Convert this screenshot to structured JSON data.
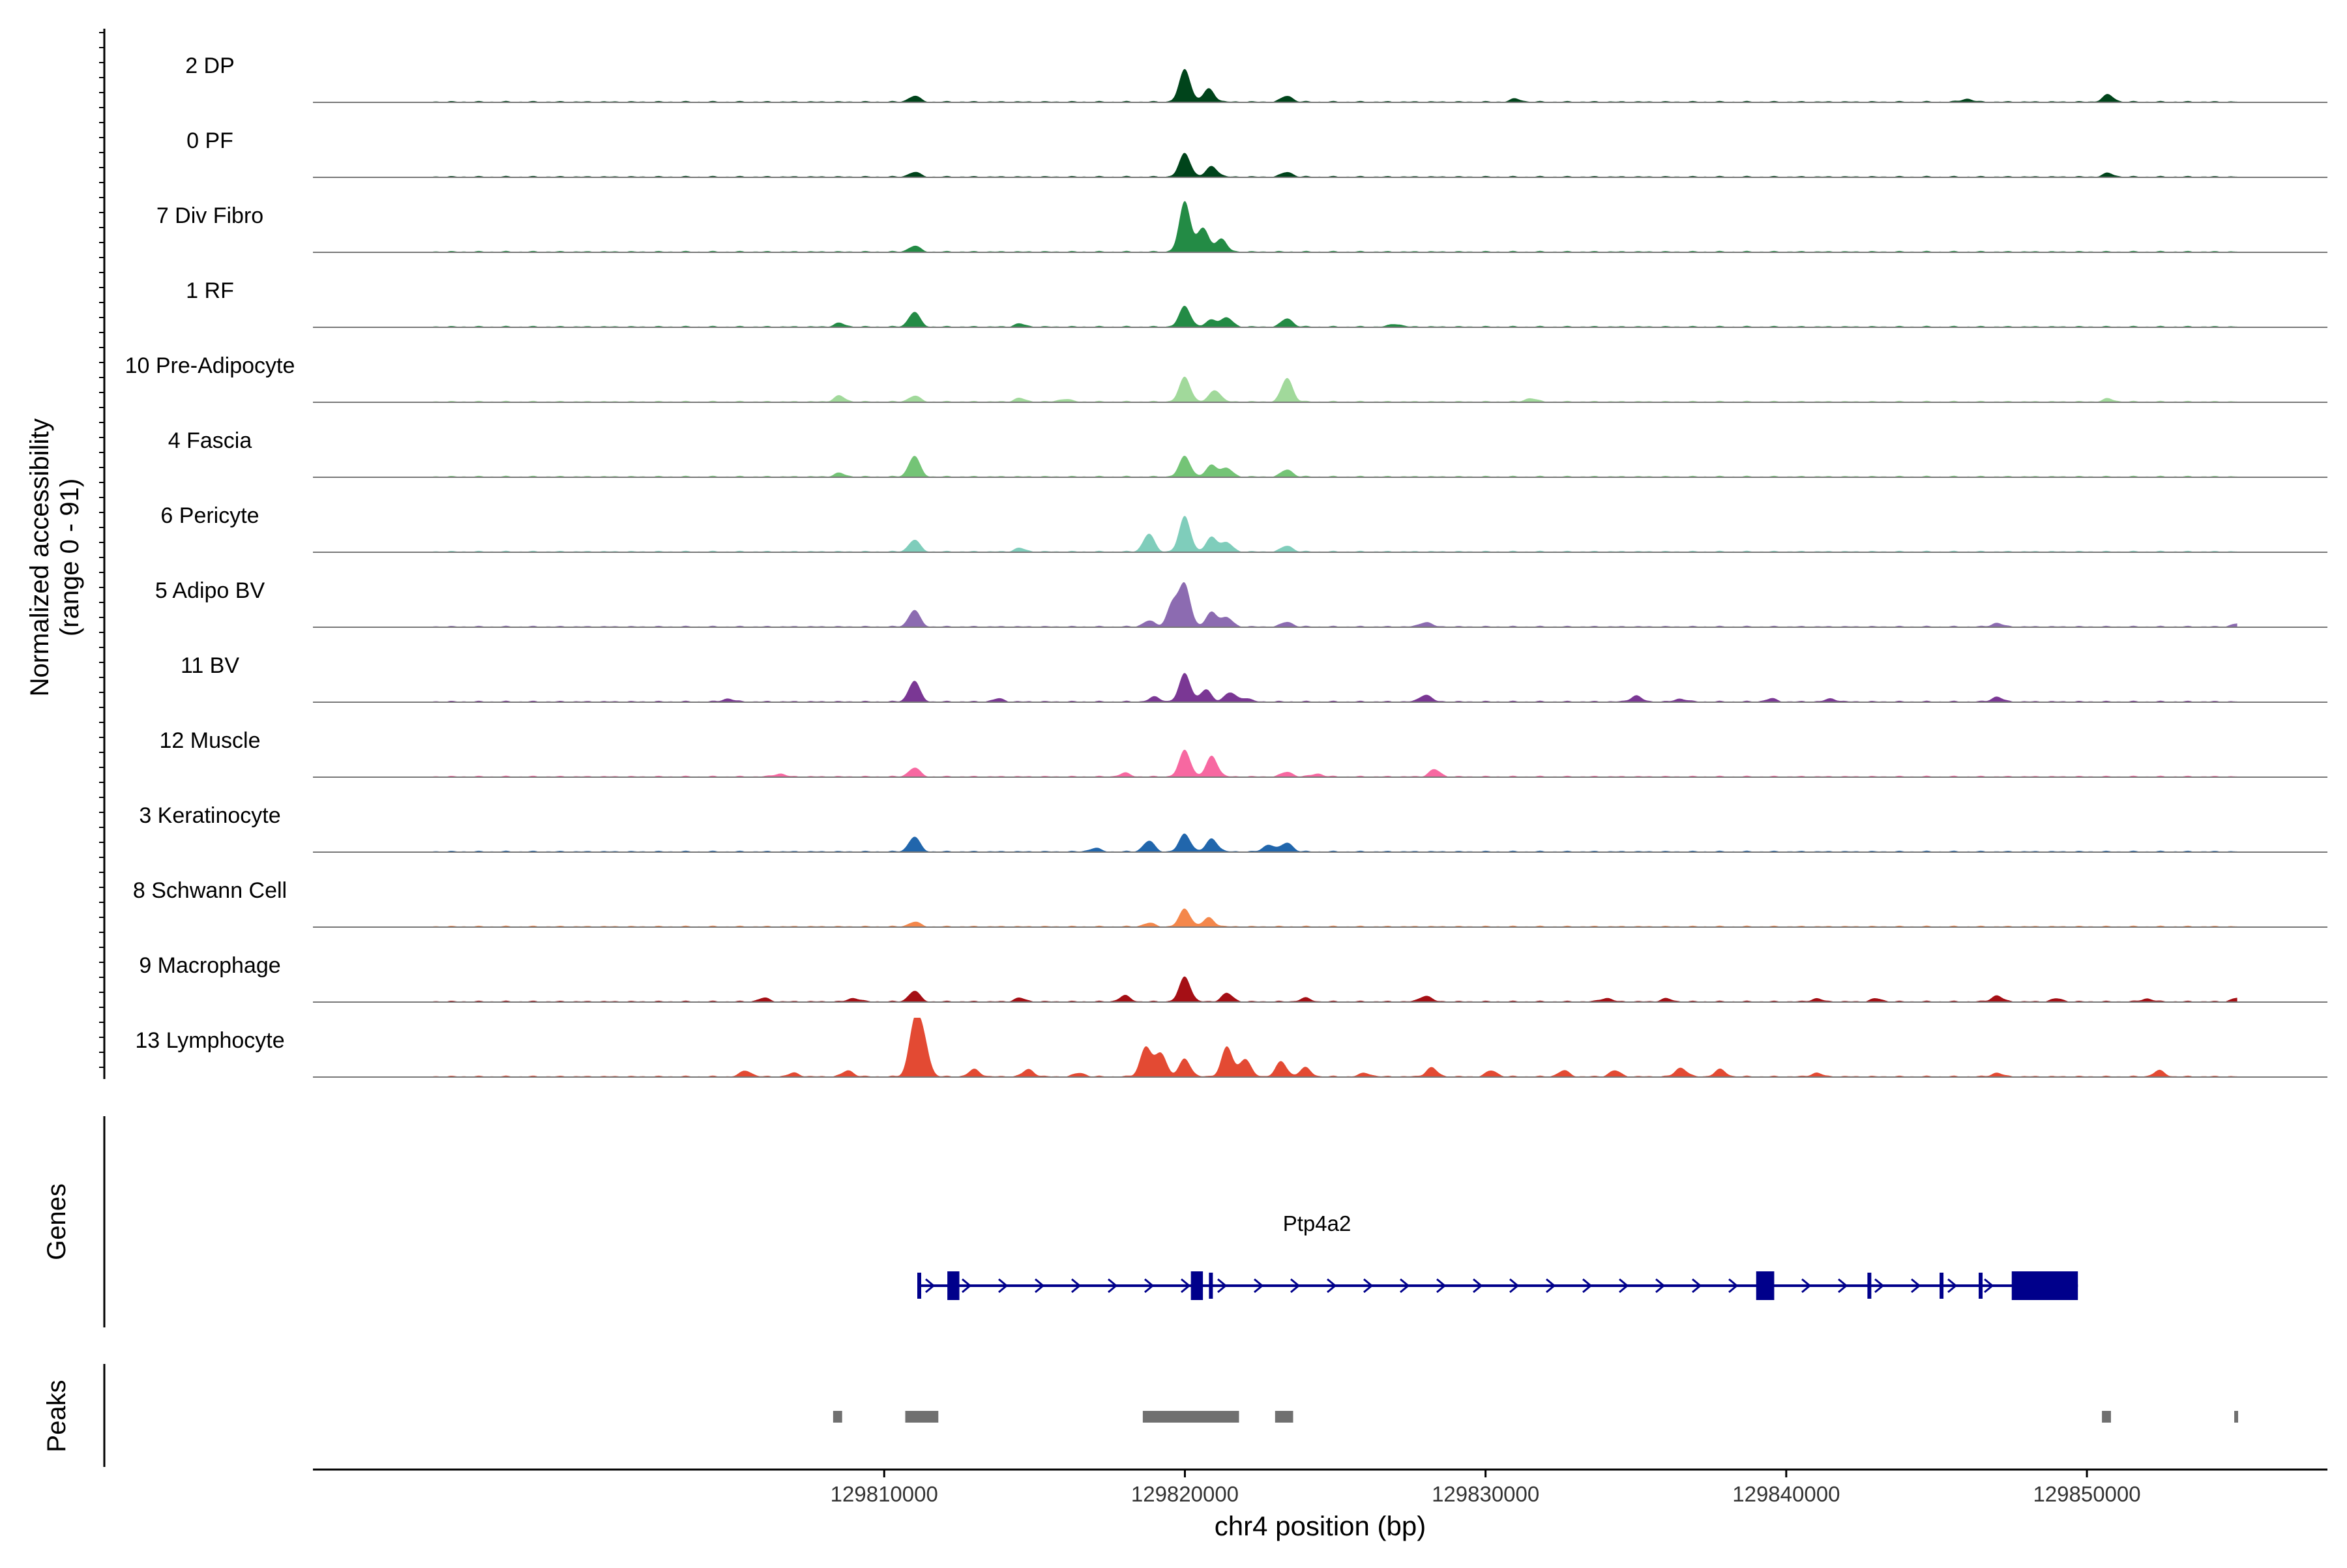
{
  "chart_data": {
    "type": "area",
    "title": "",
    "y_axis_label_line1": "Normalized accessibility",
    "y_axis_label_line2": "(range 0 - 91)",
    "x_axis_label": "chr4 position (bp)",
    "x_range": [
      129791000,
      129858000
    ],
    "x_ticks": [
      129810000,
      129820000,
      129830000,
      129840000,
      129850000
    ],
    "x_tick_labels": [
      "129810000",
      "129820000",
      "129830000",
      "129840000",
      "129850000"
    ],
    "y_range": [
      0,
      91
    ],
    "tracks": [
      {
        "name": "2 DP",
        "color": "#00441b",
        "peaks": [
          [
            129820000,
            0.55
          ],
          [
            129820800,
            0.22
          ],
          [
            129811000,
            0.1
          ],
          [
            129823400,
            0.1
          ],
          [
            129850700,
            0.12
          ],
          [
            129846000,
            0.05
          ],
          [
            129831000,
            0.05
          ]
        ]
      },
      {
        "name": "0 PF",
        "color": "#00441b",
        "peaks": [
          [
            129820000,
            0.4
          ],
          [
            129820900,
            0.18
          ],
          [
            129811000,
            0.08
          ],
          [
            129823400,
            0.08
          ],
          [
            129850700,
            0.06
          ]
        ]
      },
      {
        "name": "7 Div Fibro",
        "color": "#238b45",
        "peaks": [
          [
            129820000,
            0.85
          ],
          [
            129820600,
            0.4
          ],
          [
            129821200,
            0.22
          ],
          [
            129811000,
            0.1
          ]
        ]
      },
      {
        "name": "1 RF",
        "color": "#238b45",
        "peaks": [
          [
            129811000,
            0.25
          ],
          [
            129820000,
            0.35
          ],
          [
            129820900,
            0.12
          ],
          [
            129821400,
            0.15
          ],
          [
            129823400,
            0.14
          ],
          [
            129808500,
            0.06
          ],
          [
            129814500,
            0.05
          ],
          [
            129827000,
            0.05
          ]
        ]
      },
      {
        "name": "10 Pre-Adipocyte",
        "color": "#a1d99b",
        "peaks": [
          [
            129820000,
            0.42
          ],
          [
            129823400,
            0.4
          ],
          [
            129821000,
            0.2
          ],
          [
            129811000,
            0.1
          ],
          [
            129808500,
            0.1
          ],
          [
            129814500,
            0.06
          ],
          [
            129816000,
            0.05
          ],
          [
            129831500,
            0.06
          ],
          [
            129850700,
            0.05
          ]
        ]
      },
      {
        "name": "4 Fascia",
        "color": "#74c476",
        "peaks": [
          [
            129811000,
            0.35
          ],
          [
            129820000,
            0.35
          ],
          [
            129820900,
            0.2
          ],
          [
            129821400,
            0.14
          ],
          [
            129823400,
            0.12
          ],
          [
            129808500,
            0.06
          ]
        ]
      },
      {
        "name": "6 Pericyte",
        "color": "#7fcdbb",
        "peaks": [
          [
            129811000,
            0.2
          ],
          [
            129818800,
            0.3
          ],
          [
            129820000,
            0.6
          ],
          [
            129820900,
            0.25
          ],
          [
            129821400,
            0.15
          ],
          [
            129823400,
            0.1
          ],
          [
            129814500,
            0.06
          ]
        ]
      },
      {
        "name": "5 Adipo BV",
        "color": "#8c6bb1",
        "peaks": [
          [
            129811000,
            0.28
          ],
          [
            129818800,
            0.1
          ],
          [
            129819600,
            0.4
          ],
          [
            129820000,
            0.7
          ],
          [
            129820900,
            0.25
          ],
          [
            129821400,
            0.15
          ],
          [
            129823400,
            0.08
          ],
          [
            129828000,
            0.08
          ],
          [
            129847000,
            0.06
          ],
          [
            129855000,
            0.05
          ]
        ]
      },
      {
        "name": "11 BV",
        "color": "#7a3794",
        "peaks": [
          [
            129811000,
            0.35
          ],
          [
            129820000,
            0.48
          ],
          [
            129821500,
            0.15
          ],
          [
            129820700,
            0.2
          ],
          [
            129828000,
            0.12
          ],
          [
            129835000,
            0.1
          ],
          [
            129847000,
            0.08
          ],
          [
            129804800,
            0.05
          ],
          [
            129813800,
            0.05
          ],
          [
            129819000,
            0.08
          ],
          [
            129822000,
            0.06
          ],
          [
            129839500,
            0.05
          ],
          [
            129841500,
            0.05
          ],
          [
            129836500,
            0.05
          ]
        ]
      },
      {
        "name": "12 Muscle",
        "color": "#f768a1",
        "peaks": [
          [
            129820000,
            0.45
          ],
          [
            129820900,
            0.35
          ],
          [
            129811000,
            0.15
          ],
          [
            129818000,
            0.06
          ],
          [
            129828300,
            0.12
          ],
          [
            129806500,
            0.05
          ],
          [
            129823400,
            0.08
          ],
          [
            129824400,
            0.05
          ]
        ]
      },
      {
        "name": "3 Keratinocyte",
        "color": "#2166ac",
        "peaks": [
          [
            129811000,
            0.25
          ],
          [
            129818800,
            0.18
          ],
          [
            129820000,
            0.3
          ],
          [
            129820900,
            0.22
          ],
          [
            129822800,
            0.12
          ],
          [
            129823400,
            0.15
          ],
          [
            129817000,
            0.06
          ]
        ]
      },
      {
        "name": "8 Schwann Cell",
        "color": "#f4874b",
        "peaks": [
          [
            129820000,
            0.3
          ],
          [
            129820800,
            0.15
          ],
          [
            129811000,
            0.08
          ],
          [
            129818800,
            0.06
          ]
        ]
      },
      {
        "name": "9 Macrophage",
        "color": "#a50f15",
        "peaks": [
          [
            129820000,
            0.42
          ],
          [
            129811000,
            0.18
          ],
          [
            129821400,
            0.14
          ],
          [
            129818000,
            0.1
          ],
          [
            129824000,
            0.06
          ],
          [
            129828000,
            0.1
          ],
          [
            129847000,
            0.1
          ],
          [
            129849000,
            0.05
          ],
          [
            129852000,
            0.05
          ],
          [
            129806000,
            0.06
          ],
          [
            129809000,
            0.06
          ],
          [
            129814500,
            0.06
          ],
          [
            129834000,
            0.06
          ],
          [
            129836000,
            0.05
          ],
          [
            129841000,
            0.05
          ],
          [
            129843000,
            0.05
          ],
          [
            129855000,
            0.06
          ]
        ]
      },
      {
        "name": "13 Lymphocyte",
        "color": "#e34a33",
        "peaks": [
          [
            129811000,
            0.85
          ],
          [
            129811300,
            0.6
          ],
          [
            129818700,
            0.5
          ],
          [
            129819200,
            0.4
          ],
          [
            129820000,
            0.3
          ],
          [
            129821400,
            0.5
          ],
          [
            129822000,
            0.3
          ],
          [
            129823200,
            0.25
          ],
          [
            129824000,
            0.15
          ],
          [
            129813000,
            0.12
          ],
          [
            129814800,
            0.12
          ],
          [
            129805400,
            0.1
          ],
          [
            129807000,
            0.06
          ],
          [
            129808800,
            0.1
          ],
          [
            129816500,
            0.06
          ],
          [
            129826000,
            0.06
          ],
          [
            129828200,
            0.15
          ],
          [
            129830200,
            0.1
          ],
          [
            129832600,
            0.1
          ],
          [
            129836500,
            0.15
          ],
          [
            129837800,
            0.12
          ],
          [
            129834300,
            0.1
          ],
          [
            129841000,
            0.06
          ],
          [
            129847000,
            0.06
          ],
          [
            129852400,
            0.1
          ]
        ]
      }
    ],
    "gene": {
      "name": "Ptp4a2",
      "start": 129811100,
      "end": 129849700,
      "color": "#00008b",
      "exons": [
        [
          129811100,
          129811300,
          "small"
        ],
        [
          129812100,
          129812500,
          "large"
        ],
        [
          129820200,
          129820600,
          "large"
        ],
        [
          129820800,
          129820900,
          "small"
        ],
        [
          129839000,
          129839600,
          "large"
        ],
        [
          129842700,
          129842800,
          "small"
        ],
        [
          129845100,
          129845200,
          "small"
        ],
        [
          129846400,
          129846500,
          "small"
        ],
        [
          129847500,
          129849700,
          "large"
        ]
      ]
    },
    "peak_regions": [
      [
        129808300,
        129808600
      ],
      [
        129810700,
        129811800
      ],
      [
        129818600,
        129821800
      ],
      [
        129823000,
        129823600
      ],
      [
        129850500,
        129850800
      ],
      [
        129854900,
        129855000
      ]
    ],
    "panel_labels": {
      "genes": "Genes",
      "peaks": "Peaks"
    }
  }
}
